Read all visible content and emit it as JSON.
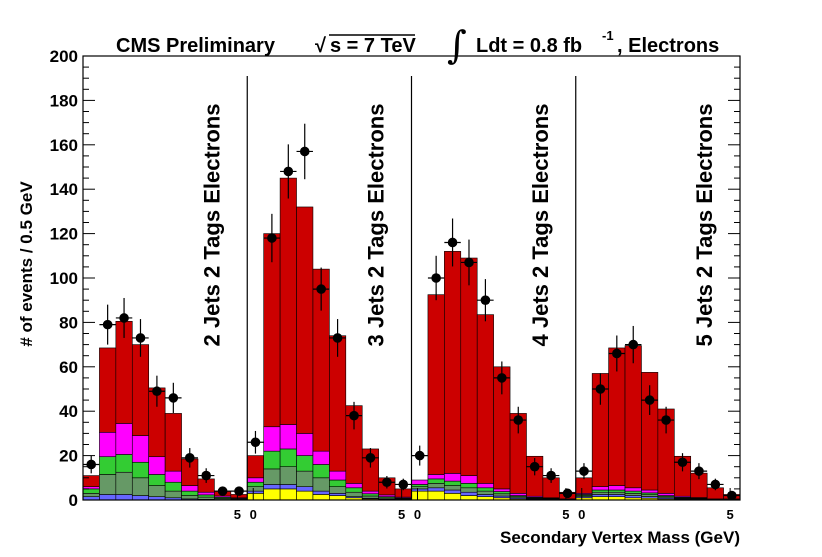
{
  "chart_data": {
    "type": "bar",
    "stacked": true,
    "title_parts": {
      "experiment": "CMS Preliminary",
      "sqrt_label": "s = 7 TeV",
      "lumi_label": "Ldt = 0.8 fb",
      "lumi_exp": "-1",
      "suffix": ", Electrons"
    },
    "xlabel": "Secondary Vertex Mass (GeV)",
    "ylabel": "# of events / 0.5 GeV",
    "ylim": [
      0,
      200
    ],
    "y_ticks": [
      "0",
      "20",
      "40",
      "60",
      "80",
      "100",
      "120",
      "140",
      "160",
      "180",
      "200"
    ],
    "x_tick_labels": [
      "5",
      "0",
      "5",
      "0",
      "5",
      "0",
      "5"
    ],
    "grid": false,
    "colors": {
      "red": "#cc0000",
      "magenta": "#ff00ff",
      "green": "#33cc33",
      "gray": "#669966",
      "blue": "#6666ff",
      "yellow": "#ffff00",
      "points": "#000000"
    },
    "panels": [
      {
        "label": "2 Jets 2 Tags Electrons",
        "bins": 10,
        "stack": {
          "yellow": [
            0,
            0,
            0,
            0,
            0,
            0,
            0,
            0,
            0,
            0
          ],
          "blue": [
            1.5,
            2.5,
            2.5,
            2,
            1.5,
            1,
            0.5,
            0.3,
            0.2,
            0.1
          ],
          "gray": [
            1.5,
            9,
            10,
            8,
            5,
            3,
            1.5,
            1,
            0.5,
            0.3
          ],
          "green": [
            2,
            8,
            8,
            7,
            5,
            4,
            2,
            1,
            0.5,
            0.3
          ],
          "magenta": [
            1,
            11,
            14,
            12,
            8,
            5,
            2.5,
            1.2,
            0.6,
            0.3
          ],
          "red": [
            5,
            38,
            46,
            41,
            31,
            26,
            12,
            6,
            2.2,
            1.5
          ]
        },
        "data": [
          16,
          79,
          82,
          73,
          49,
          46,
          19,
          11,
          4,
          4
        ],
        "errors": [
          4,
          9,
          9,
          8.5,
          7,
          6.8,
          4.4,
          3.3,
          2,
          2
        ]
      },
      {
        "label": "3 Jets 2 Tags Electrons",
        "bins": 10,
        "stack": {
          "yellow": [
            3,
            5,
            5,
            4,
            2.5,
            2,
            1,
            0.5,
            0.3,
            0.2
          ],
          "blue": [
            1,
            2,
            2,
            2,
            1.5,
            1,
            0.5,
            0.3,
            0.2,
            0.1
          ],
          "gray": [
            2,
            7,
            8,
            7,
            6,
            3,
            2,
            1,
            0.5,
            0.3
          ],
          "green": [
            2,
            8,
            8,
            7,
            6,
            3,
            2,
            1,
            0.5,
            0.3
          ],
          "magenta": [
            2,
            11,
            11,
            10,
            6,
            4,
            2,
            1.2,
            0.8,
            0.4
          ],
          "red": [
            10,
            87,
            111,
            102,
            82,
            61,
            35,
            19,
            7.7,
            3.7
          ]
        },
        "data": [
          26,
          118,
          148,
          157,
          95,
          73,
          38,
          19,
          8,
          7
        ],
        "errors": [
          5.1,
          10.9,
          12.2,
          12.5,
          9.7,
          8.5,
          6.2,
          4.4,
          2.8,
          2.6
        ]
      },
      {
        "label": "4 Jets 2 Tags Electrons",
        "bins": 10,
        "stack": {
          "yellow": [
            4,
            4,
            3,
            2,
            1.5,
            1,
            0.5,
            0.3,
            0.2,
            0.1
          ],
          "blue": [
            1,
            1.5,
            1.5,
            1.5,
            1,
            0.8,
            0.5,
            0.3,
            0.2,
            0.1
          ],
          "gray": [
            1,
            2,
            2,
            2,
            1.5,
            1,
            0.5,
            0.3,
            0.2,
            0.1
          ],
          "green": [
            1,
            2,
            2,
            2,
            1.5,
            1,
            0.5,
            0.3,
            0.2,
            0.1
          ],
          "magenta": [
            2,
            2,
            3.5,
            3.5,
            2,
            1.2,
            1,
            0.5,
            0.2,
            0.1
          ],
          "red": [
            0,
            81,
            100,
            98,
            76,
            55,
            36,
            18,
            9,
            3
          ]
        },
        "data": [
          20,
          100,
          116,
          107,
          90,
          55,
          36,
          15,
          11,
          3
        ],
        "errors": [
          4.5,
          10,
          10.8,
          10.3,
          9.5,
          7.4,
          6,
          3.9,
          3.3,
          1.7
        ]
      },
      {
        "label": "5 Jets 2 Tags Electrons",
        "bins": 10,
        "stack": {
          "yellow": [
            1,
            1.5,
            1.5,
            1,
            0.8,
            0.5,
            0.3,
            0.2,
            0.1,
            0.1
          ],
          "blue": [
            0.5,
            1,
            1,
            1,
            0.8,
            0.5,
            0.3,
            0.2,
            0.1,
            0.1
          ],
          "gray": [
            0.5,
            1,
            1,
            1,
            0.8,
            0.5,
            0.3,
            0.2,
            0.1,
            0.1
          ],
          "green": [
            0.5,
            1,
            1,
            1,
            0.8,
            0.5,
            0.3,
            0.2,
            0.1,
            0.1
          ],
          "magenta": [
            0.5,
            1.5,
            2,
            1.5,
            1.3,
            1,
            0.5,
            0.3,
            0.1,
            0.1
          ],
          "red": [
            7,
            51,
            62,
            64,
            53,
            38,
            18,
            11,
            5,
            2
          ]
        },
        "data": [
          13,
          50,
          66,
          70,
          45,
          36,
          17,
          13,
          7,
          2
        ],
        "errors": [
          3.6,
          7.1,
          8.1,
          8.4,
          6.7,
          6,
          4.1,
          3.6,
          2.6,
          1.4
        ]
      }
    ]
  }
}
